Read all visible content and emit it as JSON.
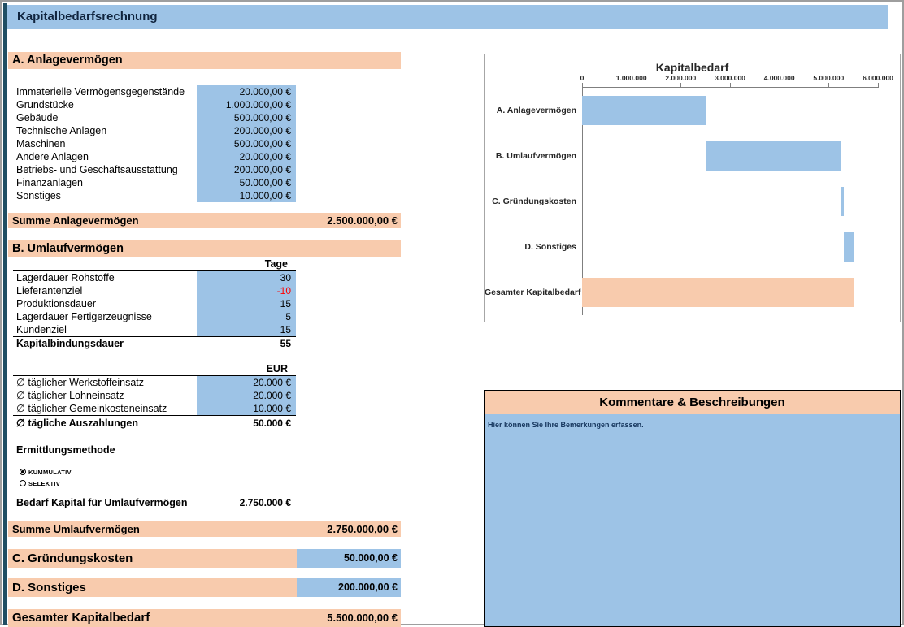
{
  "app": {
    "title": "Kapitalbedarfsrechnung"
  },
  "colors": {
    "orange": "#f8cbad",
    "blue": "#9dc3e6",
    "negative": "#ff0000"
  },
  "sections": {
    "a": {
      "title": "A. Anlagevermögen",
      "rows": [
        {
          "label": "Immaterielle Vermögensgegenstände",
          "value": "20.000,00 €"
        },
        {
          "label": "Grundstücke",
          "value": "1.000.000,00 €"
        },
        {
          "label": "Gebäude",
          "value": "500.000,00 €"
        },
        {
          "label": "Technische Anlagen",
          "value": "200.000,00 €"
        },
        {
          "label": "Maschinen",
          "value": "500.000,00 €"
        },
        {
          "label": "Andere Anlagen",
          "value": "20.000,00 €"
        },
        {
          "label": "Betriebs- und Geschäftsausstattung",
          "value": "200.000,00 €"
        },
        {
          "label": "Finanzanlagen",
          "value": "50.000,00 €"
        },
        {
          "label": "Sonstiges",
          "value": "10.000,00 €"
        }
      ],
      "sum_label": "Summe Anlagevermögen",
      "sum_value": "2.500.000,00 €"
    },
    "b": {
      "title": "B. Umlaufvermögen",
      "days_header": "Tage",
      "days_rows": [
        {
          "label": "Lagerdauer Rohstoffe",
          "value": "30",
          "negative": false
        },
        {
          "label": "Lieferantenziel",
          "value": "-10",
          "negative": true
        },
        {
          "label": "Produktionsdauer",
          "value": "15",
          "negative": false
        },
        {
          "label": "Lagerdauer Fertigerzeugnisse",
          "value": "5",
          "negative": false
        },
        {
          "label": "Kundenziel",
          "value": "15",
          "negative": false
        }
      ],
      "binding_label": "Kapitalbindungsdauer",
      "binding_value": "55",
      "eur_header": "EUR",
      "eur_rows": [
        {
          "label": "∅ täglicher Werkstoffeinsatz",
          "value": "20.000 €"
        },
        {
          "label": "∅ täglicher Lohneinsatz",
          "value": "20.000 €"
        },
        {
          "label": "∅ täglicher Gemeinkosteneinsatz",
          "value": "10.000 €"
        }
      ],
      "payout_label": "∅ tägliche Auszahlungen",
      "payout_value": "50.000 €",
      "method_label": "Ermittlungsmethode",
      "methods": [
        {
          "label": "KUMMULATIV",
          "selected": true
        },
        {
          "label": "SELEKTIV",
          "selected": false
        }
      ],
      "need_label": "Bedarf Kapital für Umlaufvermögen",
      "need_value": "2.750.000 €",
      "sum_label": "Summe Umlaufvermögen",
      "sum_value": "2.750.000,00 €"
    },
    "c": {
      "title": "C. Gründungskosten",
      "value": "50.000,00 €"
    },
    "d": {
      "title": "D. Sonstiges",
      "value": "200.000,00 €"
    },
    "total": {
      "title": "Gesamter Kapitalbedarf",
      "value": "5.500.000,00 €"
    }
  },
  "chart_data": {
    "type": "bar",
    "orientation": "horizontal",
    "title": "Kapitalbedarf",
    "categories": [
      "A. Anlagevermögen",
      "B. Umlaufvermögen",
      "C. Gründungskosten",
      "D. Sonstiges",
      "Gesamter Kapitalbedarf"
    ],
    "series": [
      {
        "name": "Kapitalbedarf",
        "starts": [
          0,
          2500000,
          5250000,
          5300000,
          0
        ],
        "ends": [
          2500000,
          5250000,
          5300000,
          5500000,
          5500000
        ],
        "values": [
          2500000,
          2750000,
          50000,
          200000,
          5500000
        ]
      }
    ],
    "bar_colors": [
      "#9dc3e6",
      "#9dc3e6",
      "#9dc3e6",
      "#9dc3e6",
      "#f8cbad"
    ],
    "xlim": [
      0,
      6000000
    ],
    "tick_values": [
      0,
      1000000,
      2000000,
      3000000,
      4000000,
      5000000,
      6000000
    ],
    "ticks": [
      "0",
      "1.000.000",
      "2.000.000",
      "3.000.000",
      "4.000.000",
      "5.000.000",
      "6.000.000"
    ],
    "legend": "off",
    "grid": "off"
  },
  "comments": {
    "title": "Kommentare & Beschreibungen",
    "placeholder": "Hier können Sie Ihre Bemerkungen erfassen."
  }
}
